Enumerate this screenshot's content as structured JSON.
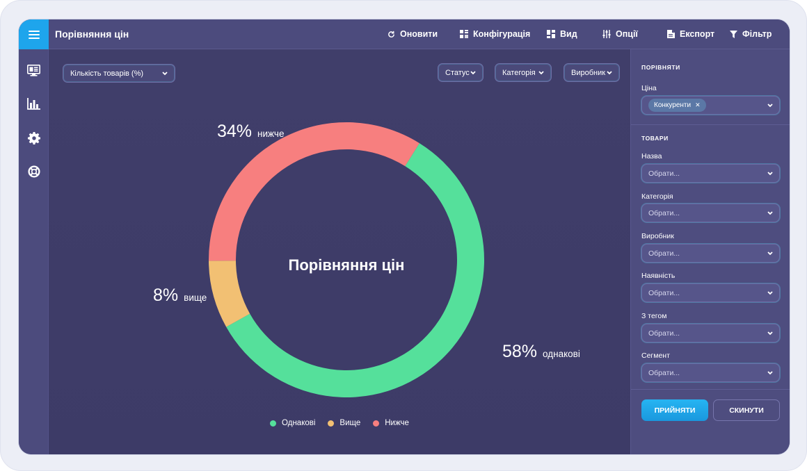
{
  "app": {
    "title": "Порівняння цін"
  },
  "toolbar": {
    "refresh": "Оновити",
    "config": "Конфігурація",
    "view": "Вид",
    "options": "Опції",
    "export": "Експорт",
    "filter": "Фільтр"
  },
  "main": {
    "metric_select": "Кількість товарів (%)",
    "filters": {
      "status": "Статус",
      "category": "Категорія",
      "manufacturer": "Виробник"
    }
  },
  "chart_data": {
    "type": "pie",
    "title": "Порівняння цін",
    "donut": true,
    "slices": [
      {
        "label": "Однакові",
        "value": 58,
        "display": "58%",
        "caption": "однакові",
        "color": "#55e09b"
      },
      {
        "label": "Вище",
        "value": 8,
        "display": "8%",
        "caption": "вище",
        "color": "#f2c073"
      },
      {
        "label": "Нижче",
        "value": 34,
        "display": "34%",
        "caption": "нижче",
        "color": "#f77f7f"
      }
    ],
    "legend": [
      "Однакові",
      "Вище",
      "Нижче"
    ],
    "legend_position": "bottom"
  },
  "panel": {
    "compare_title": "ПОРІВНЯТИ",
    "price_label": "Ціна",
    "price_chip": "Конкуренти",
    "goods_title": "ТОВАРИ",
    "fields": [
      {
        "label": "Назва",
        "placeholder": "Обрати..."
      },
      {
        "label": "Категорія",
        "placeholder": "Обрати..."
      },
      {
        "label": "Виробник",
        "placeholder": "Обрати..."
      },
      {
        "label": "Наявність",
        "placeholder": "Обрати..."
      },
      {
        "label": "З тегом",
        "placeholder": "Обрати..."
      },
      {
        "label": "Сегмент",
        "placeholder": "Обрати..."
      }
    ],
    "accept": "ПРИЙНЯТИ",
    "reset": "СКИНУТИ"
  },
  "icons": {
    "menu": "menu-icon",
    "refresh": "refresh-icon",
    "config": "config-icon",
    "view": "view-icon",
    "options": "sliders-icon",
    "export": "file-icon",
    "filter": "filter-icon",
    "sidebar": [
      "dashboard-icon",
      "bar-chart-icon",
      "gear-icon",
      "support-icon"
    ]
  }
}
